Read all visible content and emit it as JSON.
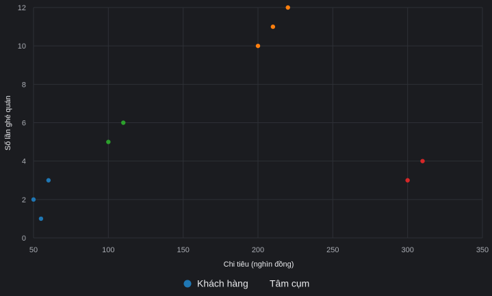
{
  "chart_data": {
    "type": "scatter",
    "xlabel": "Chi tiêu (nghìn đồng)",
    "ylabel": "Số lần ghé quán",
    "xlim": [
      50,
      350
    ],
    "ylim": [
      0,
      12
    ],
    "x_ticks": [
      50,
      100,
      150,
      200,
      250,
      300,
      350
    ],
    "y_ticks": [
      0,
      2,
      4,
      6,
      8,
      10,
      12
    ],
    "grid": true,
    "legend": {
      "placement": "bottom",
      "entries": [
        {
          "name": "Khách hàng",
          "color": "#1f77b4",
          "marker": "circle"
        },
        {
          "name": "Tâm cụm",
          "color": "#1b1c20",
          "marker": "none"
        }
      ]
    },
    "series": [
      {
        "name": "Khách hàng",
        "points": [
          {
            "x": 50,
            "y": 2,
            "color": "#1f77b4"
          },
          {
            "x": 55,
            "y": 1,
            "color": "#1f77b4"
          },
          {
            "x": 60,
            "y": 3,
            "color": "#1f77b4"
          },
          {
            "x": 100,
            "y": 5,
            "color": "#2ca02c"
          },
          {
            "x": 110,
            "y": 6,
            "color": "#2ca02c"
          },
          {
            "x": 200,
            "y": 10,
            "color": "#ff7f0e"
          },
          {
            "x": 210,
            "y": 11,
            "color": "#ff7f0e"
          },
          {
            "x": 220,
            "y": 12,
            "color": "#ff7f0e"
          },
          {
            "x": 300,
            "y": 3,
            "color": "#d62728"
          },
          {
            "x": 310,
            "y": 4,
            "color": "#d62728"
          }
        ]
      },
      {
        "name": "Tâm cụm",
        "points": []
      }
    ]
  },
  "colors": {
    "background": "#1b1c20",
    "grid": "#2e3036",
    "tick_text": "#a8abb2",
    "title_text": "#e6e7ea"
  }
}
